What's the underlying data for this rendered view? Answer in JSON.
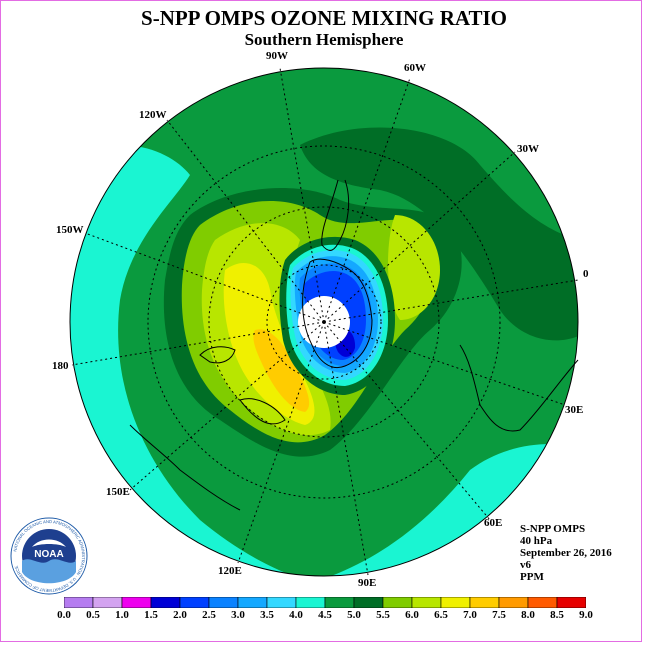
{
  "title": "S-NPP OMPS OZONE MIXING RATIO",
  "subtitle": "Southern Hemisphere",
  "longitude_labels": [
    "90W",
    "60W",
    "30W",
    "0",
    "30E",
    "60E",
    "90E",
    "120E",
    "150E",
    "180",
    "150W",
    "120W"
  ],
  "info": {
    "instrument": "S-NPP OMPS",
    "level": "40 hPa",
    "date": "September 26, 2016",
    "version": "v6",
    "units": "PPM"
  },
  "logo": {
    "name": "NOAA",
    "ring_text": "NATIONAL OCEANIC AND ATMOSPHERIC ADMINISTRATION · U.S. DEPARTMENT OF COMMERCE"
  },
  "legend": {
    "ticks": [
      "0.0",
      "0.5",
      "1.0",
      "1.5",
      "2.0",
      "2.5",
      "3.0",
      "3.5",
      "4.0",
      "4.5",
      "5.0",
      "5.5",
      "6.0",
      "6.5",
      "7.0",
      "7.5",
      "8.0",
      "8.5",
      "9.0"
    ],
    "colors": [
      "#b57cf0",
      "#d3a3f0",
      "#ee00ee",
      "#0000d6",
      "#0040ff",
      "#0a82ff",
      "#14a8ff",
      "#33d8ff",
      "#1af5d2",
      "#0a9a3e",
      "#006e26",
      "#80cc00",
      "#b8e600",
      "#f0f000",
      "#ffcc00",
      "#ff9a00",
      "#ff5a00",
      "#e60000",
      "#8b5a32"
    ]
  }
}
